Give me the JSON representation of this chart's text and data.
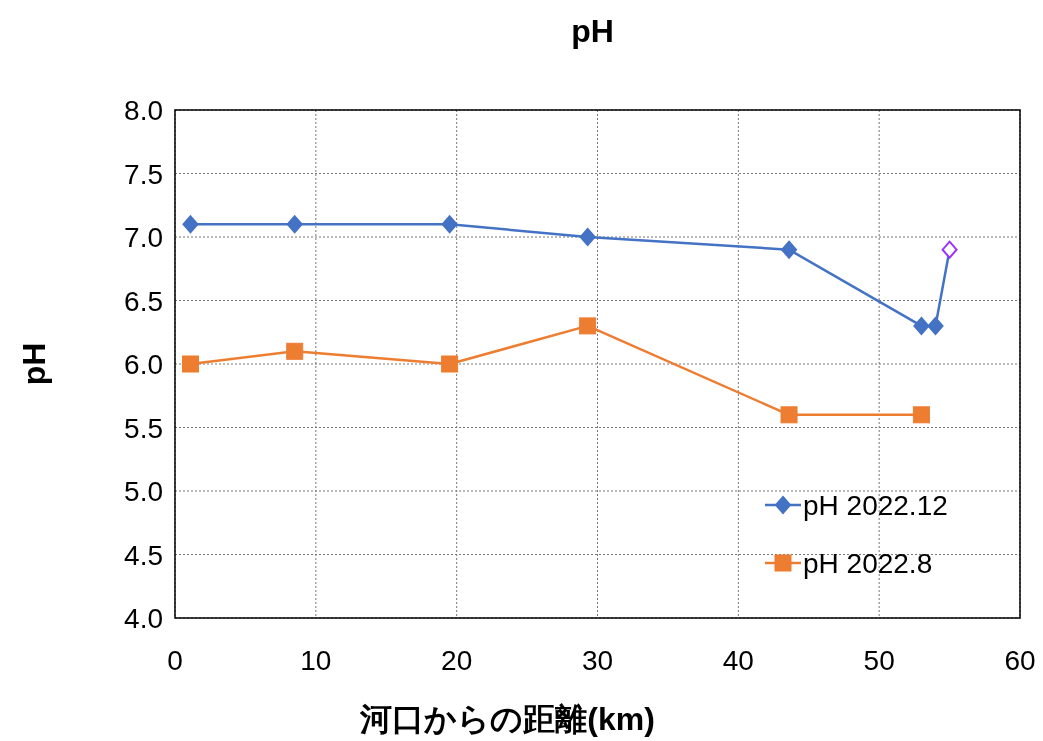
{
  "chart_data": {
    "type": "line",
    "title": "pH",
    "xlabel": "河口からの距離(km)",
    "ylabel": "pH",
    "xlim": [
      0,
      60
    ],
    "xticks": [
      0,
      10,
      20,
      30,
      40,
      50,
      60
    ],
    "ylim": [
      4.0,
      8.0
    ],
    "yticks": [
      {
        "value": 4,
        "label": "4.0"
      },
      {
        "value": 4.5,
        "label": "4.5"
      },
      {
        "value": 5,
        "label": "5.0"
      },
      {
        "value": 5.5,
        "label": "5.5"
      },
      {
        "value": 6,
        "label": "6.0"
      },
      {
        "value": 6.5,
        "label": "6.5"
      },
      {
        "value": 7,
        "label": "7.0"
      },
      {
        "value": 7.5,
        "label": "7.5"
      },
      {
        "value": 8,
        "label": "8.0"
      }
    ],
    "grid": true,
    "legend": "bottom right",
    "line_style": "solid",
    "series": [
      {
        "name": "pH  2022.12",
        "color": "#4472c4",
        "marker": "diamond",
        "x": [
          1.1,
          8.5,
          19.5,
          29.3,
          43.6,
          53.0,
          54.0,
          55.0
        ],
        "values": [
          7.1,
          7.1,
          7.1,
          7.0,
          6.9,
          6.3,
          6.3,
          6.9
        ],
        "colors": [
          "#4472c4",
          "#4472c4",
          "#4472c4",
          "#4472c4",
          "#4472c4",
          "#4472c4",
          "#4472c4",
          "#9933ff"
        ]
      },
      {
        "name": "pH  2022.8",
        "color": "#ed7d31",
        "marker": "square",
        "x": [
          1.1,
          8.5,
          19.5,
          29.3,
          43.6,
          53.0
        ],
        "values": [
          6.0,
          6.1,
          6.0,
          6.3,
          5.6,
          5.6
        ]
      }
    ]
  }
}
